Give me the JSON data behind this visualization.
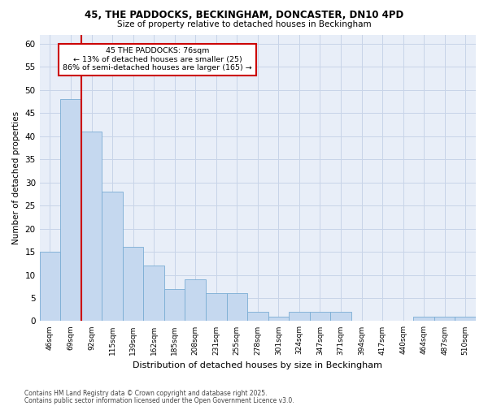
{
  "title1": "45, THE PADDOCKS, BECKINGHAM, DONCASTER, DN10 4PD",
  "title2": "Size of property relative to detached houses in Beckingham",
  "xlabel": "Distribution of detached houses by size in Beckingham",
  "ylabel": "Number of detached properties",
  "bin_labels": [
    "46sqm",
    "69sqm",
    "92sqm",
    "115sqm",
    "139sqm",
    "162sqm",
    "185sqm",
    "208sqm",
    "231sqm",
    "255sqm",
    "278sqm",
    "301sqm",
    "324sqm",
    "347sqm",
    "371sqm",
    "394sqm",
    "417sqm",
    "440sqm",
    "464sqm",
    "487sqm",
    "510sqm"
  ],
  "bar_values": [
    15,
    48,
    41,
    28,
    16,
    12,
    7,
    9,
    6,
    6,
    2,
    1,
    2,
    2,
    2,
    0,
    0,
    0,
    1,
    1,
    1
  ],
  "bar_color": "#c5d8ef",
  "bar_edge_color": "#7aadd4",
  "grid_color": "#c8d4e8",
  "bg_color": "#e8eef8",
  "red_line_x": 1.5,
  "annotation_text": "45 THE PADDOCKS: 76sqm\n← 13% of detached houses are smaller (25)\n86% of semi-detached houses are larger (165) →",
  "annotation_box_color": "#ffffff",
  "annotation_box_edge": "#cc0000",
  "red_line_color": "#cc0000",
  "ylim": [
    0,
    62
  ],
  "yticks": [
    0,
    5,
    10,
    15,
    20,
    25,
    30,
    35,
    40,
    45,
    50,
    55,
    60
  ],
  "footnote1": "Contains HM Land Registry data © Crown copyright and database right 2025.",
  "footnote2": "Contains public sector information licensed under the Open Government Licence v3.0."
}
